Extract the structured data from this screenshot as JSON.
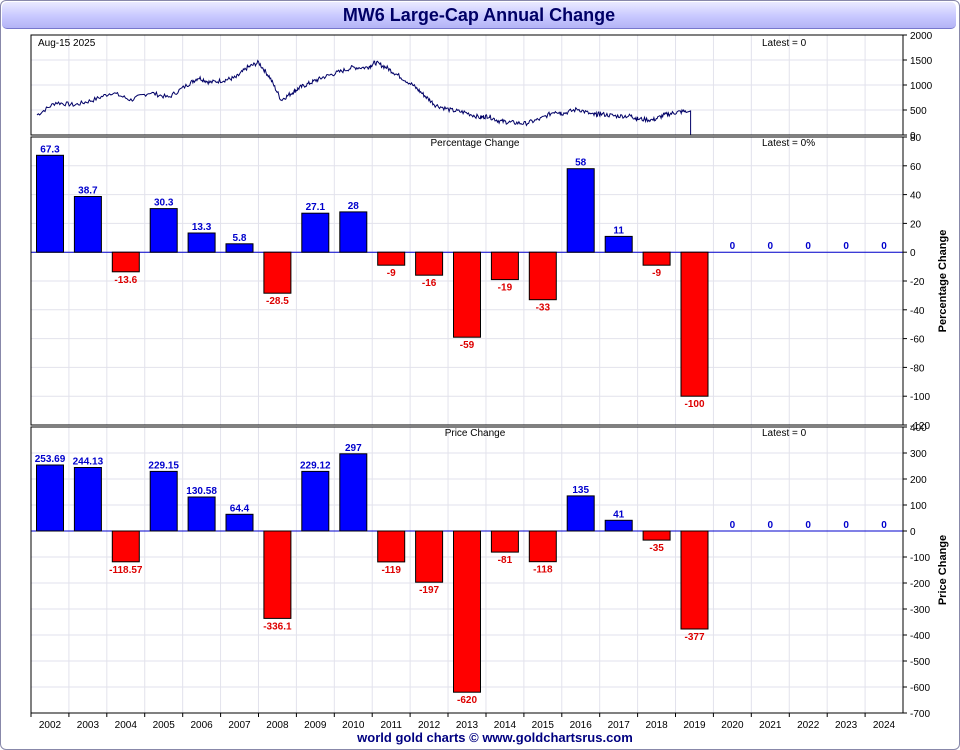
{
  "title": "MW6 Large-Cap Annual Change",
  "footer": "world gold charts © www.goldchartsrus.com",
  "colors": {
    "up": "#0000ff",
    "down": "#ff0000",
    "up_label": "#0000cc",
    "down_label": "#dd0000",
    "line": "#000066"
  },
  "panels": {
    "top": {
      "date": "Aug-15  2025",
      "latest": "Latest = 0"
    },
    "pct": {
      "title": "Percentage Change",
      "latest": "Latest = 0%",
      "ylabel": "Percentage Change"
    },
    "price": {
      "title": "Price Change",
      "latest": "Latest = 0",
      "ylabel": "Price Change"
    }
  },
  "chart_data": [
    {
      "type": "line",
      "x_range": [
        "2002",
        "2025"
      ],
      "ylim": [
        0,
        2000
      ],
      "yticks": [
        0,
        500,
        1000,
        1500,
        2000
      ],
      "approx_points": [
        [
          2002.0,
          400
        ],
        [
          2002.5,
          650
        ],
        [
          2003.0,
          600
        ],
        [
          2003.5,
          700
        ],
        [
          2004.0,
          850
        ],
        [
          2004.5,
          700
        ],
        [
          2005.0,
          850
        ],
        [
          2005.5,
          750
        ],
        [
          2006.0,
          1000
        ],
        [
          2006.3,
          1150
        ],
        [
          2006.6,
          1050
        ],
        [
          2007.0,
          1100
        ],
        [
          2007.3,
          1150
        ],
        [
          2007.6,
          1350
        ],
        [
          2007.9,
          1450
        ],
        [
          2008.2,
          1150
        ],
        [
          2008.5,
          700
        ],
        [
          2008.8,
          850
        ],
        [
          2009.0,
          950
        ],
        [
          2009.3,
          1050
        ],
        [
          2009.6,
          1150
        ],
        [
          2010.0,
          1250
        ],
        [
          2010.4,
          1350
        ],
        [
          2010.8,
          1350
        ],
        [
          2011.0,
          1450
        ],
        [
          2011.3,
          1350
        ],
        [
          2011.6,
          1200
        ],
        [
          2012.0,
          1000
        ],
        [
          2012.3,
          800
        ],
        [
          2012.6,
          600
        ],
        [
          2013.0,
          500
        ],
        [
          2013.4,
          450
        ],
        [
          2013.8,
          350
        ],
        [
          2014.0,
          380
        ],
        [
          2014.3,
          280
        ],
        [
          2014.6,
          250
        ],
        [
          2015.0,
          230
        ],
        [
          2015.4,
          320
        ],
        [
          2015.8,
          480
        ],
        [
          2016.0,
          430
        ],
        [
          2016.4,
          520
        ],
        [
          2016.8,
          400
        ],
        [
          2017.0,
          420
        ],
        [
          2017.4,
          380
        ],
        [
          2017.8,
          380
        ],
        [
          2018.0,
          320
        ],
        [
          2018.4,
          300
        ],
        [
          2018.7,
          400
        ],
        [
          2019.0,
          450
        ],
        [
          2019.3,
          480
        ],
        [
          2019.4,
          0
        ]
      ]
    },
    {
      "type": "bar",
      "title": "Percentage Change",
      "ylabel": "Percentage Change",
      "ylim": [
        -120,
        80
      ],
      "yticks": [
        -120,
        -100,
        -80,
        -60,
        -40,
        -20,
        0,
        20,
        40,
        60,
        80
      ],
      "categories": [
        "2002",
        "2003",
        "2004",
        "2005",
        "2006",
        "2007",
        "2008",
        "2009",
        "2010",
        "2011",
        "2012",
        "2013",
        "2014",
        "2015",
        "2016",
        "2017",
        "2018",
        "2019",
        "2020",
        "2021",
        "2022",
        "2023",
        "2024"
      ],
      "values": [
        67.3,
        38.7,
        -13.6,
        30.3,
        13.3,
        5.8,
        -28.5,
        27.1,
        28,
        -9,
        -16,
        -59,
        -19,
        -33,
        58,
        11,
        -9,
        -100,
        0,
        0,
        0,
        0,
        0
      ],
      "labels": [
        "67.3",
        "38.7",
        "-13.6",
        "30.3",
        "13.3",
        "5.8",
        "-28.5",
        "27.1",
        "28",
        "-9",
        "-16",
        "-59",
        "-19",
        "-33",
        "58",
        "11",
        "-9",
        "-100",
        "0",
        "0",
        "0",
        "0",
        "0"
      ]
    },
    {
      "type": "bar",
      "title": "Price Change",
      "ylabel": "Price Change",
      "ylim": [
        -700,
        400
      ],
      "yticks": [
        -700,
        -600,
        -500,
        -400,
        -300,
        -200,
        -100,
        0,
        100,
        200,
        300,
        400
      ],
      "categories": [
        "2002",
        "2003",
        "2004",
        "2005",
        "2006",
        "2007",
        "2008",
        "2009",
        "2010",
        "2011",
        "2012",
        "2013",
        "2014",
        "2015",
        "2016",
        "2017",
        "2018",
        "2019",
        "2020",
        "2021",
        "2022",
        "2023",
        "2024"
      ],
      "values": [
        253.69,
        244.13,
        -118.57,
        229.15,
        130.58,
        64.4,
        -336.1,
        229.12,
        297,
        -119,
        -197,
        -620,
        -81,
        -118,
        135,
        41,
        -35,
        -377,
        0,
        0,
        0,
        0,
        0
      ],
      "labels": [
        "253.69",
        "244.13",
        "-118.57",
        "229.15",
        "130.58",
        "64.4",
        "-336.1",
        "229.12",
        "297",
        "-119",
        "-197",
        "-620",
        "-81",
        "-118",
        "135",
        "41",
        "-35",
        "-377",
        "0",
        "0",
        "0",
        "0",
        "0"
      ]
    }
  ]
}
